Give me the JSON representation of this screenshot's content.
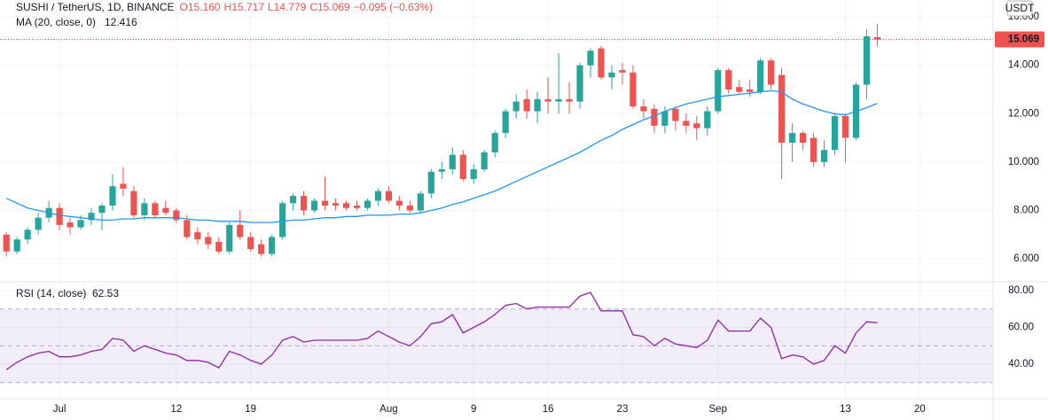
{
  "chart_data": {
    "type": "candlestick",
    "header": {
      "title": "SUSHI / TetherUS, 1D, BINANCE",
      "values": [
        "O15.160",
        "H15.717",
        "L14.779",
        "C15.069"
      ],
      "change": "−0.095 (−0.63%)"
    },
    "currency": "USDT",
    "up_color": "#26a69a",
    "down_color": "#ef5350",
    "candles": [
      [
        7.0,
        7.1,
        6.1,
        6.3
      ],
      [
        6.3,
        6.9,
        6.2,
        6.8
      ],
      [
        6.8,
        7.3,
        6.6,
        7.2
      ],
      [
        7.2,
        7.9,
        7.0,
        7.7
      ],
      [
        7.7,
        8.4,
        7.5,
        8.1
      ],
      [
        8.1,
        8.3,
        7.2,
        7.4
      ],
      [
        7.5,
        7.7,
        7.0,
        7.3
      ],
      [
        7.3,
        7.8,
        7.2,
        7.6
      ],
      [
        7.6,
        8.1,
        7.4,
        7.9
      ],
      [
        7.9,
        8.3,
        7.2,
        8.2
      ],
      [
        8.2,
        9.5,
        8.0,
        9.0
      ],
      [
        9.1,
        9.8,
        8.6,
        8.9
      ],
      [
        8.8,
        9.0,
        7.7,
        7.8
      ],
      [
        7.8,
        8.5,
        7.6,
        8.3
      ],
      [
        8.3,
        8.4,
        7.7,
        7.8
      ],
      [
        8.1,
        8.4,
        7.8,
        7.9
      ],
      [
        8.0,
        8.1,
        7.5,
        7.6
      ],
      [
        7.6,
        7.8,
        6.8,
        6.9
      ],
      [
        7.1,
        7.3,
        6.6,
        6.8
      ],
      [
        6.9,
        7.1,
        6.4,
        6.6
      ],
      [
        6.7,
        6.9,
        6.2,
        6.3
      ],
      [
        6.3,
        7.5,
        6.2,
        7.4
      ],
      [
        7.4,
        8.0,
        6.8,
        6.9
      ],
      [
        6.9,
        7.1,
        6.3,
        6.4
      ],
      [
        6.6,
        6.8,
        6.1,
        6.2
      ],
      [
        6.2,
        7.0,
        6.1,
        6.9
      ],
      [
        6.9,
        8.4,
        6.8,
        8.3
      ],
      [
        8.3,
        8.7,
        8.0,
        8.6
      ],
      [
        8.6,
        8.8,
        7.8,
        8.0
      ],
      [
        8.0,
        8.5,
        7.9,
        8.4
      ],
      [
        8.4,
        9.4,
        8.0,
        8.2
      ],
      [
        8.3,
        8.5,
        8.0,
        8.2
      ],
      [
        8.3,
        8.4,
        8.0,
        8.1
      ],
      [
        8.2,
        8.4,
        8.0,
        8.1
      ],
      [
        8.1,
        8.5,
        8.0,
        8.4
      ],
      [
        8.4,
        8.9,
        8.2,
        8.8
      ],
      [
        8.8,
        9.0,
        8.3,
        8.4
      ],
      [
        8.4,
        8.6,
        8.0,
        8.2
      ],
      [
        8.2,
        8.4,
        7.9,
        8.0
      ],
      [
        8.0,
        8.8,
        7.9,
        8.7
      ],
      [
        8.7,
        9.7,
        8.5,
        9.6
      ],
      [
        9.6,
        10.0,
        9.3,
        9.7
      ],
      [
        9.7,
        10.6,
        9.5,
        10.3
      ],
      [
        10.3,
        10.5,
        9.2,
        9.3
      ],
      [
        9.3,
        9.9,
        9.1,
        9.7
      ],
      [
        9.7,
        10.5,
        9.6,
        10.4
      ],
      [
        10.4,
        11.3,
        10.2,
        11.2
      ],
      [
        11.2,
        12.2,
        11.0,
        12.1
      ],
      [
        12.1,
        12.8,
        11.8,
        12.5
      ],
      [
        12.6,
        13.0,
        11.8,
        12.1
      ],
      [
        12.1,
        12.9,
        11.6,
        12.6
      ],
      [
        12.6,
        13.5,
        12.0,
        12.5
      ],
      [
        12.5,
        14.5,
        12.0,
        12.6
      ],
      [
        12.6,
        13.3,
        12.0,
        12.5
      ],
      [
        12.5,
        14.1,
        12.2,
        14.0
      ],
      [
        14.0,
        14.7,
        13.5,
        14.6
      ],
      [
        14.7,
        14.8,
        13.4,
        13.5
      ],
      [
        13.5,
        14.0,
        13.0,
        13.7
      ],
      [
        13.8,
        14.1,
        13.2,
        13.7
      ],
      [
        13.7,
        14.0,
        12.2,
        12.3
      ],
      [
        12.3,
        12.6,
        11.8,
        12.1
      ],
      [
        12.2,
        12.4,
        11.2,
        11.5
      ],
      [
        11.5,
        12.3,
        11.2,
        12.1
      ],
      [
        12.2,
        12.3,
        11.3,
        11.7
      ],
      [
        11.7,
        12.0,
        11.2,
        11.5
      ],
      [
        11.6,
        11.9,
        10.9,
        11.4
      ],
      [
        11.4,
        12.3,
        11.1,
        12.1
      ],
      [
        12.1,
        13.9,
        12.0,
        13.8
      ],
      [
        13.8,
        13.9,
        12.8,
        13.0
      ],
      [
        13.1,
        13.4,
        12.8,
        12.9
      ],
      [
        13.0,
        13.4,
        12.7,
        12.9
      ],
      [
        12.9,
        14.3,
        12.8,
        14.2
      ],
      [
        14.2,
        14.3,
        13.0,
        13.2
      ],
      [
        13.6,
        13.9,
        9.3,
        10.8
      ],
      [
        10.8,
        11.6,
        10.0,
        11.2
      ],
      [
        11.2,
        11.3,
        10.5,
        10.8
      ],
      [
        11.0,
        11.2,
        9.8,
        10.0
      ],
      [
        10.0,
        10.9,
        9.8,
        10.5
      ],
      [
        10.5,
        12.0,
        10.3,
        11.9
      ],
      [
        11.9,
        12.0,
        10.0,
        11.0
      ],
      [
        11.0,
        13.3,
        10.9,
        13.2
      ],
      [
        13.2,
        15.5,
        12.6,
        15.2
      ],
      [
        15.16,
        15.717,
        14.779,
        15.069
      ]
    ],
    "price_label": "15.069",
    "ma": {
      "name": "MA (20, close, 0)",
      "color": "#2196f3",
      "value_label": "12.416",
      "values": [
        8.5,
        8.3,
        8.1,
        8.0,
        7.9,
        7.8,
        7.75,
        7.7,
        7.65,
        7.6,
        7.6,
        7.65,
        7.65,
        7.7,
        7.7,
        7.7,
        7.7,
        7.65,
        7.6,
        7.6,
        7.55,
        7.55,
        7.55,
        7.5,
        7.5,
        7.5,
        7.55,
        7.6,
        7.6,
        7.65,
        7.7,
        7.7,
        7.75,
        7.75,
        7.8,
        7.8,
        7.8,
        7.85,
        7.85,
        7.9,
        8.0,
        8.1,
        8.25,
        8.35,
        8.5,
        8.65,
        8.8,
        9.0,
        9.2,
        9.4,
        9.6,
        9.8,
        10.0,
        10.2,
        10.4,
        10.65,
        10.9,
        11.1,
        11.35,
        11.55,
        11.75,
        11.9,
        12.1,
        12.25,
        12.4,
        12.5,
        12.6,
        12.7,
        12.75,
        12.8,
        12.85,
        12.9,
        12.95,
        12.9,
        12.6,
        12.4,
        12.25,
        12.1,
        12.0,
        11.95,
        12.1,
        12.25,
        12.416
      ]
    },
    "xlim": [
      -0.6,
      92.9
    ],
    "xticks": [
      {
        "value": 5,
        "label": "Jul"
      },
      {
        "value": 16,
        "label": "12"
      },
      {
        "value": 23,
        "label": "19"
      },
      {
        "value": 36,
        "label": "Aug"
      },
      {
        "value": 44,
        "label": "9"
      },
      {
        "value": 51,
        "label": "16"
      },
      {
        "value": 58,
        "label": "23"
      },
      {
        "value": 67,
        "label": "Sep"
      },
      {
        "value": 79,
        "label": "13"
      },
      {
        "value": 86,
        "label": "20"
      }
    ],
    "ylim": [
      5.05,
      16.7
    ],
    "yticks": [
      {
        "value": 6,
        "label": "6.000"
      },
      {
        "value": 8,
        "label": "8.000"
      },
      {
        "value": 10,
        "label": "10.000"
      },
      {
        "value": 12,
        "label": "12.000"
      },
      {
        "value": 14,
        "label": "14.000"
      },
      {
        "value": 16,
        "label": "16.000"
      }
    ],
    "rsi": {
      "name": "RSI (14, close)",
      "color": "#8e24aa",
      "value_label": "62.53",
      "band": [
        30,
        70
      ],
      "midline": 50,
      "values": [
        37,
        41,
        44,
        46,
        47,
        44,
        44,
        45,
        47,
        48,
        54,
        53,
        47,
        50,
        48,
        46,
        45,
        42,
        42,
        41,
        38,
        47,
        45,
        42,
        40,
        45,
        53,
        55,
        52,
        53,
        53,
        53,
        53,
        53,
        54,
        58,
        55,
        52,
        50,
        55,
        62,
        63,
        67,
        57,
        60,
        63,
        67,
        72,
        73,
        70,
        71,
        71,
        71,
        71,
        77,
        79,
        69,
        69,
        69,
        56,
        55,
        50,
        54,
        51,
        50,
        49,
        53,
        64,
        58,
        58,
        58,
        65,
        60,
        43,
        45,
        44,
        40,
        42,
        50,
        46,
        57,
        63,
        62.53
      ],
      "ylim": [
        21.2,
        84.8
      ],
      "yticks": [
        {
          "value": 40,
          "label": "40.00"
        },
        {
          "value": 60,
          "label": "60.00"
        },
        {
          "value": 80,
          "label": "80.00"
        }
      ]
    }
  }
}
